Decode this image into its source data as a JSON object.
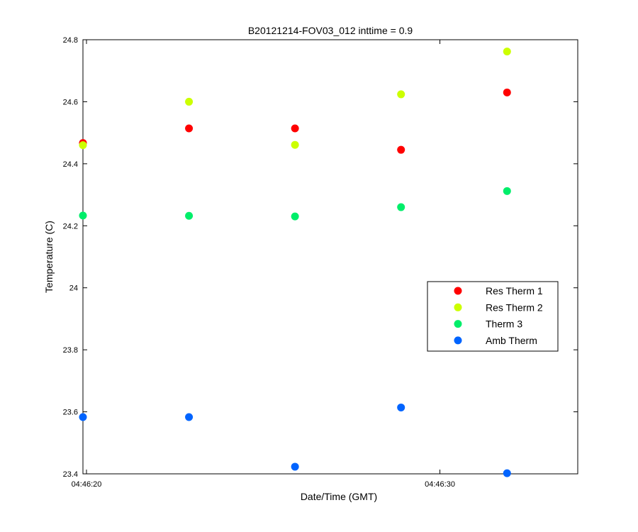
{
  "chart_data": {
    "type": "scatter",
    "title": "B20121214-FOV03_012 inttime = 0.9",
    "xlabel": "Date/Time (GMT)",
    "ylabel": "Temperature (C)",
    "xlim": [
      "04:46:19.9",
      "04:46:33.9"
    ],
    "ylim": [
      23.4,
      24.8
    ],
    "x_ticks": [
      "04:46:20",
      "04:46:30"
    ],
    "y_ticks": [
      "23.4",
      "23.6",
      "23.8",
      "24",
      "24.2",
      "24.4",
      "24.6",
      "24.8"
    ],
    "x": [
      "04:46:19.9",
      "04:46:22.9",
      "04:46:25.9",
      "04:46:28.9",
      "04:46:31.9"
    ],
    "grid": false,
    "legend_position": "right",
    "series": [
      {
        "name": "Res Therm 1",
        "color": "#ff0000",
        "values": [
          24.467,
          24.514,
          24.514,
          24.445,
          24.63
        ]
      },
      {
        "name": "Res Therm 2",
        "color": "#ccff00",
        "values": [
          24.46,
          24.6,
          24.461,
          24.624,
          24.762
        ]
      },
      {
        "name": "Therm 3",
        "color": "#00ee6a",
        "values": [
          24.233,
          24.232,
          24.23,
          24.26,
          24.312
        ]
      },
      {
        "name": "Amb Therm",
        "color": "#0064ff",
        "values": [
          23.583,
          23.583,
          23.423,
          23.614,
          23.402
        ]
      }
    ]
  }
}
